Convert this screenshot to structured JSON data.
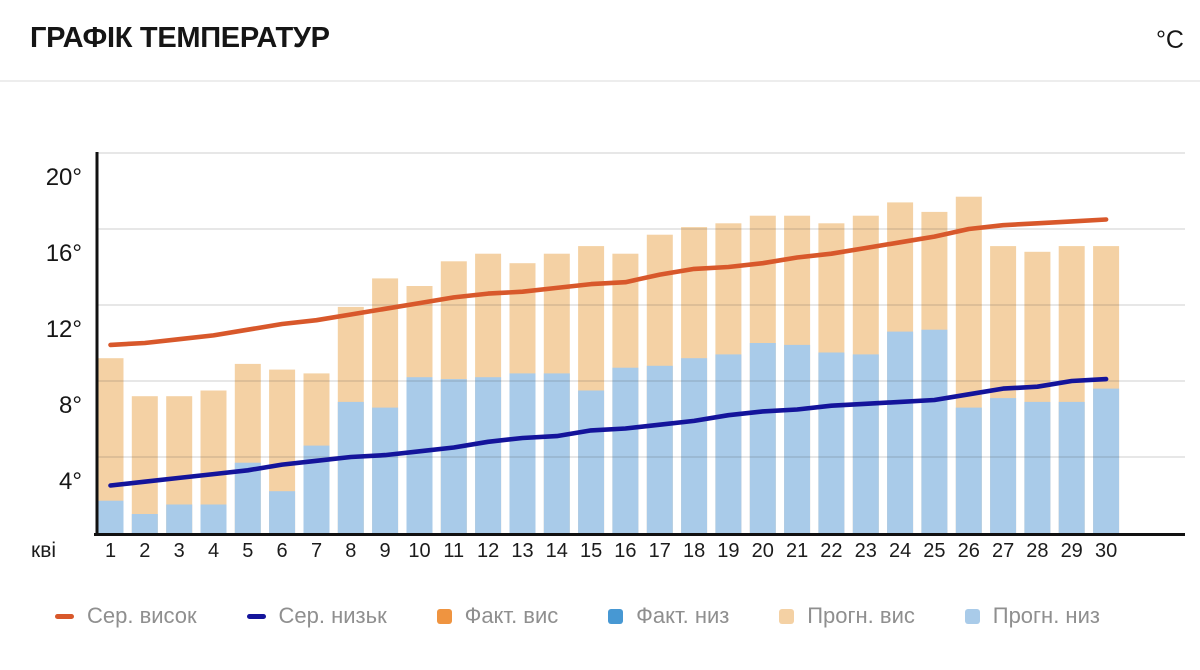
{
  "header": {
    "title": "ГРАФІК ТЕМПЕРАТУР",
    "unit": "°C"
  },
  "chart_data": {
    "type": "bar",
    "subtype": "stacked bars with overlay lines",
    "title": "ГРАФІК ТЕМПЕРАТУР",
    "unit": "°C",
    "grid": true,
    "legend_position": "bottom",
    "x_axis": {
      "label": "кві",
      "categories": [
        1,
        2,
        3,
        4,
        5,
        6,
        7,
        8,
        9,
        10,
        11,
        12,
        13,
        14,
        15,
        16,
        17,
        18,
        19,
        20,
        21,
        22,
        23,
        24,
        25,
        26,
        27,
        28,
        29,
        30
      ]
    },
    "y_axis": {
      "ticks": [
        4,
        8,
        12,
        16,
        20
      ],
      "tick_suffix": "°",
      "range": [
        0,
        21.5
      ]
    },
    "series": [
      {
        "name": "Сер. висок",
        "type": "line",
        "color": "#d8582b",
        "values": [
          9.9,
          10.0,
          10.2,
          10.4,
          10.7,
          11.0,
          11.2,
          11.5,
          11.8,
          12.1,
          12.4,
          12.6,
          12.7,
          12.9,
          13.1,
          13.2,
          13.6,
          13.9,
          14.0,
          14.2,
          14.5,
          14.7,
          15.0,
          15.3,
          15.6,
          16.0,
          16.2,
          16.3,
          16.4,
          16.5
        ]
      },
      {
        "name": "Сер. низьк",
        "type": "line",
        "color": "#14149b",
        "values": [
          2.5,
          2.7,
          2.9,
          3.1,
          3.3,
          3.6,
          3.8,
          4.0,
          4.1,
          4.3,
          4.5,
          4.8,
          5.0,
          5.1,
          5.4,
          5.5,
          5.7,
          5.9,
          6.2,
          6.4,
          6.5,
          6.7,
          6.8,
          6.9,
          7.0,
          7.3,
          7.6,
          7.7,
          8.0,
          8.1
        ]
      },
      {
        "name": "Факт. вис",
        "type": "bar",
        "color": "#ef9440",
        "values": []
      },
      {
        "name": "Факт. низ",
        "type": "bar",
        "color": "#4798d3",
        "values": []
      },
      {
        "name": "Прогн. вис",
        "type": "bar",
        "color": "#f4d1a4",
        "values": [
          9.2,
          7.2,
          7.2,
          7.5,
          8.9,
          8.6,
          8.4,
          11.9,
          13.4,
          13.0,
          14.3,
          14.7,
          14.2,
          14.7,
          15.1,
          14.7,
          15.7,
          16.1,
          16.3,
          16.7,
          16.7,
          16.3,
          16.7,
          17.4,
          16.9,
          17.7,
          15.1,
          14.8,
          15.1,
          15.1
        ]
      },
      {
        "name": "Прогн. низ",
        "type": "bar",
        "color": "#a9cbe9",
        "values": [
          1.7,
          1.0,
          1.5,
          1.5,
          3.7,
          2.2,
          4.6,
          6.9,
          6.6,
          8.2,
          8.1,
          8.2,
          8.4,
          8.4,
          7.5,
          8.7,
          8.8,
          9.2,
          9.4,
          10.0,
          9.9,
          9.5,
          9.4,
          10.6,
          10.7,
          6.6,
          7.1,
          6.9,
          6.9,
          7.6
        ]
      }
    ]
  }
}
